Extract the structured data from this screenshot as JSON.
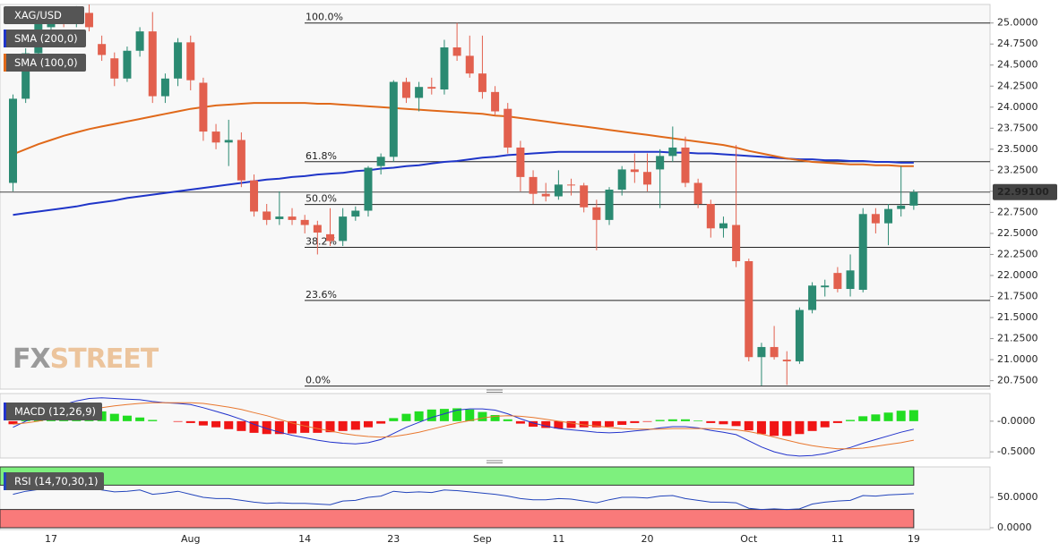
{
  "chart_data": {
    "type": "candlestick",
    "symbol": "XAG/USD",
    "categories": [
      null,
      null,
      null,
      "17",
      null,
      null,
      null,
      null,
      null,
      null,
      null,
      null,
      null,
      null,
      "Aug",
      null,
      null,
      null,
      null,
      null,
      null,
      null,
      null,
      "14",
      null,
      null,
      null,
      null,
      null,
      null,
      "23",
      null,
      null,
      null,
      null,
      null,
      null,
      "Sep",
      null,
      null,
      null,
      null,
      null,
      "11",
      null,
      null,
      null,
      null,
      null,
      null,
      "20",
      null,
      null,
      null,
      null,
      null,
      null,
      null,
      "Oct",
      null,
      null,
      null,
      null,
      null,
      null,
      "11",
      null,
      null,
      null,
      null,
      null,
      "19"
    ],
    "open": [
      23.1,
      24.1,
      24.64,
      24.95,
      25.08,
      25.0,
      25.12,
      24.75,
      24.58,
      24.34,
      24.67,
      24.9,
      24.13,
      24.34,
      24.77,
      24.29,
      23.71,
      23.58,
      23.61,
      23.13,
      22.76,
      22.67,
      22.7,
      22.66,
      22.6,
      22.49,
      22.41,
      22.7,
      22.77,
      23.3,
      23.41,
      24.3,
      24.11,
      24.24,
      24.21,
      24.71,
      24.61,
      24.4,
      24.18,
      23.98,
      23.52,
      23.17,
      22.97,
      22.94,
      23.08,
      23.07,
      22.81,
      22.66,
      23.02,
      23.26,
      23.23,
      23.26,
      23.42,
      23.52,
      23.1,
      22.85,
      22.56,
      22.6,
      22.17,
      21.03,
      21.15,
      21.0,
      20.98,
      21.59,
      21.86,
      22.03,
      21.84,
      21.83,
      22.73,
      22.62,
      22.79,
      22.83
    ],
    "high": [
      24.15,
      24.7,
      25.05,
      25.15,
      25.18,
      25.2,
      25.22,
      24.85,
      24.65,
      24.72,
      24.95,
      25.13,
      24.4,
      24.82,
      24.85,
      24.35,
      23.8,
      23.85,
      23.7,
      23.2,
      22.85,
      23.0,
      22.8,
      22.72,
      22.65,
      22.8,
      22.8,
      22.82,
      23.3,
      23.45,
      24.32,
      24.35,
      24.3,
      24.35,
      24.8,
      25.0,
      24.85,
      24.85,
      24.25,
      24.05,
      23.6,
      23.25,
      23.1,
      23.25,
      23.15,
      23.1,
      22.9,
      23.05,
      23.3,
      23.45,
      23.45,
      23.5,
      23.77,
      23.65,
      23.15,
      22.9,
      22.7,
      23.55,
      22.2,
      21.2,
      21.4,
      21.1,
      21.62,
      21.92,
      21.95,
      22.1,
      22.25,
      22.8,
      22.8,
      22.85,
      23.3,
      23.02
    ],
    "low": [
      23.0,
      24.05,
      24.55,
      24.85,
      24.95,
      24.95,
      24.9,
      24.55,
      24.25,
      24.3,
      24.6,
      24.05,
      24.05,
      24.25,
      24.2,
      23.6,
      23.5,
      23.3,
      23.05,
      22.7,
      22.6,
      22.6,
      22.6,
      22.5,
      22.25,
      22.35,
      22.35,
      22.65,
      22.7,
      23.2,
      23.35,
      24.05,
      23.95,
      24.15,
      24.15,
      24.55,
      24.35,
      24.1,
      23.9,
      23.45,
      23.0,
      22.85,
      22.88,
      22.9,
      22.95,
      22.75,
      22.3,
      22.6,
      22.95,
      23.1,
      23.0,
      22.8,
      23.35,
      23.05,
      22.8,
      22.45,
      22.45,
      22.1,
      20.98,
      20.69,
      21.0,
      20.7,
      20.95,
      21.55,
      21.75,
      21.8,
      21.75,
      21.8,
      22.5,
      22.36,
      22.7,
      22.78
    ],
    "close": [
      24.1,
      24.64,
      25.0,
      25.08,
      25.0,
      25.12,
      24.95,
      24.62,
      24.34,
      24.67,
      24.9,
      24.13,
      24.34,
      24.77,
      24.32,
      23.71,
      23.58,
      23.61,
      23.13,
      22.76,
      22.66,
      22.7,
      22.66,
      22.6,
      22.51,
      22.41,
      22.7,
      22.77,
      23.28,
      23.41,
      24.3,
      24.11,
      24.24,
      24.22,
      24.71,
      24.61,
      24.4,
      24.18,
      23.95,
      23.52,
      23.17,
      22.97,
      22.94,
      23.08,
      23.07,
      22.81,
      22.66,
      23.02,
      23.26,
      23.23,
      23.08,
      23.42,
      23.52,
      23.1,
      22.85,
      22.56,
      22.62,
      22.17,
      21.03,
      21.15,
      21.03,
      20.98,
      21.59,
      21.88,
      21.88,
      21.84,
      22.06,
      22.73,
      22.62,
      22.79,
      22.83,
      22.991
    ],
    "up_color": "#2b8a72",
    "down_color": "#e2604e",
    "ylim": [
      20.65,
      25.22
    ],
    "yticks": [
      {
        "value": 20.75,
        "label": "20.7500"
      },
      {
        "value": 21,
        "label": "21.0000"
      },
      {
        "value": 21.25,
        "label": "21.2500"
      },
      {
        "value": 21.5,
        "label": "21.5000"
      },
      {
        "value": 21.75,
        "label": "21.7500"
      },
      {
        "value": 22,
        "label": "22.0000"
      },
      {
        "value": 22.25,
        "label": "22.2500"
      },
      {
        "value": 22.5,
        "label": "22.5000"
      },
      {
        "value": 22.75,
        "label": "22.7500"
      },
      {
        "value": 23,
        "label": "23.0000"
      },
      {
        "value": 23.25,
        "label": "23.2500"
      },
      {
        "value": 23.5,
        "label": "23.5000"
      },
      {
        "value": 23.75,
        "label": "23.7500"
      },
      {
        "value": 24,
        "label": "24.0000"
      },
      {
        "value": 24.25,
        "label": "24.2500"
      },
      {
        "value": 24.5,
        "label": "24.5000"
      },
      {
        "value": 24.75,
        "label": "24.7500"
      },
      {
        "value": 25,
        "label": "25.0000"
      }
    ],
    "last_price": {
      "value": 22.991,
      "label": "22.99100"
    },
    "fib_levels": [
      {
        "label": "100.0%",
        "price": 25.0
      },
      {
        "label": "61.8%",
        "price": 23.352
      },
      {
        "label": "50.0%",
        "price": 22.843
      },
      {
        "label": "38.2%",
        "price": 22.334
      },
      {
        "label": "23.6%",
        "price": 21.704
      },
      {
        "label": "0.0%",
        "price": 20.686
      }
    ],
    "overlays": [
      {
        "name": "SMA (200,0)",
        "color": "#1f35c8",
        "values": [
          22.72,
          22.74,
          22.76,
          22.78,
          22.8,
          22.82,
          22.85,
          22.87,
          22.89,
          22.92,
          22.94,
          22.96,
          22.98,
          23.0,
          23.02,
          23.04,
          23.06,
          23.08,
          23.1,
          23.12,
          23.14,
          23.15,
          23.17,
          23.18,
          23.2,
          23.21,
          23.22,
          23.24,
          23.25,
          23.27,
          23.28,
          23.3,
          23.31,
          23.33,
          23.35,
          23.36,
          23.38,
          23.4,
          23.41,
          23.43,
          23.44,
          23.45,
          23.46,
          23.47,
          23.47,
          23.47,
          23.47,
          23.47,
          23.47,
          23.47,
          23.47,
          23.47,
          23.46,
          23.46,
          23.45,
          23.45,
          23.44,
          23.43,
          23.42,
          23.41,
          23.4,
          23.39,
          23.38,
          23.38,
          23.37,
          23.37,
          23.36,
          23.36,
          23.35,
          23.35,
          23.34,
          23.34
        ]
      },
      {
        "name": "SMA (100,0)",
        "color": "#e0691a",
        "values": [
          23.44,
          23.5,
          23.56,
          23.61,
          23.66,
          23.7,
          23.74,
          23.77,
          23.8,
          23.83,
          23.86,
          23.89,
          23.92,
          23.95,
          23.98,
          24.0,
          24.02,
          24.03,
          24.04,
          24.05,
          24.05,
          24.05,
          24.05,
          24.05,
          24.04,
          24.04,
          24.03,
          24.02,
          24.01,
          24.0,
          23.99,
          23.98,
          23.97,
          23.96,
          23.95,
          23.94,
          23.93,
          23.92,
          23.9,
          23.89,
          23.87,
          23.85,
          23.83,
          23.81,
          23.79,
          23.77,
          23.75,
          23.73,
          23.71,
          23.69,
          23.67,
          23.65,
          23.63,
          23.61,
          23.59,
          23.57,
          23.55,
          23.52,
          23.48,
          23.45,
          23.42,
          23.39,
          23.37,
          23.35,
          23.34,
          23.33,
          23.32,
          23.32,
          23.31,
          23.31,
          23.3,
          23.3
        ]
      }
    ],
    "watermark": [
      "FX",
      "STREET"
    ],
    "macd": {
      "label": "MACD (12,26,9)",
      "ylim": [
        -0.6,
        0.45
      ],
      "yticks": [
        {
          "value": 0,
          "label": "-0.0000"
        },
        {
          "value": -0.5,
          "label": "-0.5000"
        }
      ],
      "macd_line": {
        "color": "#2233cc",
        "values": [
          -0.1,
          0.0,
          0.1,
          0.2,
          0.27,
          0.33,
          0.37,
          0.38,
          0.37,
          0.36,
          0.35,
          0.32,
          0.3,
          0.29,
          0.27,
          0.22,
          0.16,
          0.1,
          0.03,
          -0.05,
          -0.12,
          -0.18,
          -0.23,
          -0.27,
          -0.31,
          -0.34,
          -0.36,
          -0.37,
          -0.35,
          -0.3,
          -0.2,
          -0.1,
          -0.02,
          0.06,
          0.12,
          0.18,
          0.2,
          0.2,
          0.18,
          0.12,
          0.04,
          -0.03,
          -0.08,
          -0.12,
          -0.14,
          -0.16,
          -0.18,
          -0.19,
          -0.18,
          -0.16,
          -0.14,
          -0.11,
          -0.09,
          -0.09,
          -0.11,
          -0.15,
          -0.18,
          -0.22,
          -0.32,
          -0.42,
          -0.5,
          -0.55,
          -0.57,
          -0.56,
          -0.53,
          -0.48,
          -0.43,
          -0.36,
          -0.3,
          -0.24,
          -0.18,
          -0.13
        ]
      },
      "signal_line": {
        "color": "#e8772e",
        "values": [
          -0.05,
          -0.03,
          0.0,
          0.04,
          0.09,
          0.14,
          0.18,
          0.22,
          0.25,
          0.27,
          0.29,
          0.3,
          0.3,
          0.3,
          0.3,
          0.29,
          0.26,
          0.23,
          0.19,
          0.14,
          0.09,
          0.03,
          -0.03,
          -0.08,
          -0.12,
          -0.16,
          -0.2,
          -0.23,
          -0.25,
          -0.26,
          -0.25,
          -0.22,
          -0.18,
          -0.13,
          -0.08,
          -0.03,
          0.01,
          0.05,
          0.08,
          0.09,
          0.08,
          0.06,
          0.03,
          0.0,
          -0.03,
          -0.06,
          -0.08,
          -0.1,
          -0.12,
          -0.13,
          -0.13,
          -0.13,
          -0.12,
          -0.12,
          -0.12,
          -0.12,
          -0.13,
          -0.14,
          -0.17,
          -0.21,
          -0.26,
          -0.31,
          -0.36,
          -0.4,
          -0.43,
          -0.45,
          -0.45,
          -0.44,
          -0.41,
          -0.38,
          -0.35,
          -0.31
        ]
      },
      "histogram": {
        "up_color": "#22dd22",
        "down_color": "#f01515",
        "values": [
          -0.05,
          0.03,
          0.1,
          0.16,
          0.18,
          0.19,
          0.19,
          0.16,
          0.12,
          0.09,
          0.06,
          0.02,
          0.0,
          -0.01,
          -0.03,
          -0.07,
          -0.1,
          -0.13,
          -0.16,
          -0.19,
          -0.21,
          -0.21,
          -0.2,
          -0.19,
          -0.19,
          -0.18,
          -0.16,
          -0.14,
          -0.1,
          -0.04,
          0.05,
          0.12,
          0.16,
          0.19,
          0.2,
          0.21,
          0.19,
          0.15,
          0.1,
          0.03,
          -0.04,
          -0.09,
          -0.11,
          -0.12,
          -0.11,
          -0.1,
          -0.1,
          -0.09,
          -0.06,
          -0.03,
          -0.01,
          0.02,
          0.03,
          0.03,
          0.01,
          -0.03,
          -0.05,
          -0.08,
          -0.15,
          -0.21,
          -0.24,
          -0.24,
          -0.21,
          -0.16,
          -0.1,
          -0.03,
          0.02,
          0.08,
          0.11,
          0.14,
          0.17,
          0.18
        ]
      }
    },
    "rsi": {
      "label": "RSI (14,70,30,1)",
      "ylim": [
        0,
        100
      ],
      "yticks": [
        {
          "value": 50,
          "label": "50.0000"
        },
        {
          "value": 0,
          "label": "0.0000"
        }
      ],
      "overbought": 70,
      "oversold": 30,
      "overbought_color": "#7ef07e",
      "oversold_color": "#f97a7a",
      "color": "#2244bb",
      "values": [
        55,
        60,
        63,
        66,
        67,
        68,
        66,
        62,
        59,
        60,
        62,
        55,
        57,
        60,
        55,
        50,
        48,
        48,
        45,
        42,
        40,
        41,
        40,
        40,
        39,
        38,
        44,
        45,
        50,
        52,
        60,
        58,
        59,
        58,
        62,
        61,
        59,
        57,
        55,
        52,
        48,
        46,
        46,
        48,
        47,
        44,
        41,
        46,
        50,
        50,
        49,
        52,
        53,
        48,
        45,
        42,
        42,
        41,
        32,
        30,
        31,
        30,
        31,
        39,
        42,
        44,
        45,
        53,
        52,
        54,
        55,
        56
      ]
    }
  }
}
